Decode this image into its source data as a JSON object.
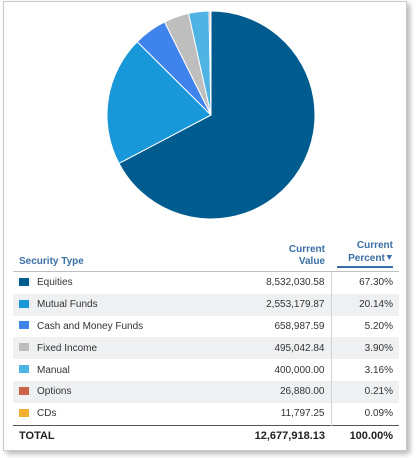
{
  "chart_data": {
    "type": "pie",
    "series": [
      {
        "name": "Equities",
        "value": 8532030.58,
        "percent": 67.3,
        "color": "#005b8f"
      },
      {
        "name": "Mutual Funds",
        "value": 2553179.87,
        "percent": 20.14,
        "color": "#1897d9"
      },
      {
        "name": "Cash and Money Funds",
        "value": 658987.59,
        "percent": 5.2,
        "color": "#3f83ed"
      },
      {
        "name": "Fixed Income",
        "value": 495042.84,
        "percent": 3.9,
        "color": "#bebebe"
      },
      {
        "name": "Manual",
        "value": 400000.0,
        "percent": 3.16,
        "color": "#4fb3e4"
      },
      {
        "name": "Options",
        "value": 26880.0,
        "percent": 0.21,
        "color": "#c96446"
      },
      {
        "name": "CDs",
        "value": 11797.25,
        "percent": 0.09,
        "color": "#f2b133"
      }
    ]
  },
  "table": {
    "headers": {
      "type": "Security Type",
      "value_line1": "Current",
      "value_line2": "Value",
      "pct_line1": "Current",
      "pct_line2": "Percent"
    },
    "rows": [
      {
        "name": "Equities",
        "value": "8,532,030.58",
        "percent": "67.30%",
        "color": "#005b8f"
      },
      {
        "name": "Mutual Funds",
        "value": "2,553,179.87",
        "percent": "20.14%",
        "color": "#1897d9"
      },
      {
        "name": "Cash and Money Funds",
        "value": "658,987.59",
        "percent": "5.20%",
        "color": "#3f83ed"
      },
      {
        "name": "Fixed Income",
        "value": "495,042.84",
        "percent": "3.90%",
        "color": "#bebebe"
      },
      {
        "name": "Manual",
        "value": "400,000.00",
        "percent": "3.16%",
        "color": "#4fb3e4"
      },
      {
        "name": "Options",
        "value": "26,880.00",
        "percent": "0.21%",
        "color": "#c96446"
      },
      {
        "name": "CDs",
        "value": "11,797.25",
        "percent": "0.09%",
        "color": "#f2b133"
      }
    ],
    "total": {
      "label": "TOTAL",
      "value": "12,677,918.13",
      "percent": "100.00%"
    },
    "sort_icon": "chevron-down-icon"
  }
}
